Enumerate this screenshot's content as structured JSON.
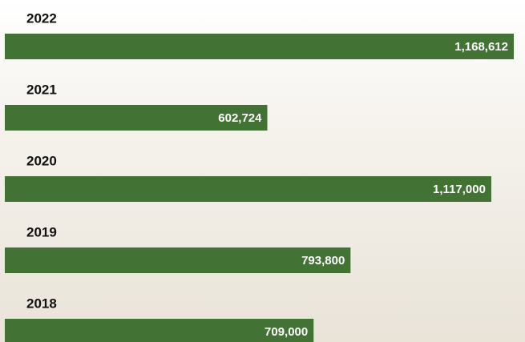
{
  "chart_data": {
    "type": "bar",
    "orientation": "horizontal",
    "categories": [
      "2022",
      "2021",
      "2020",
      "2019",
      "2018"
    ],
    "values": [
      1168612,
      602724,
      1117000,
      793800,
      709000
    ],
    "value_labels": [
      "1,168,612",
      "602,724",
      "1,117,000",
      "793,800",
      "709,000"
    ],
    "color": "#437334"
  }
}
